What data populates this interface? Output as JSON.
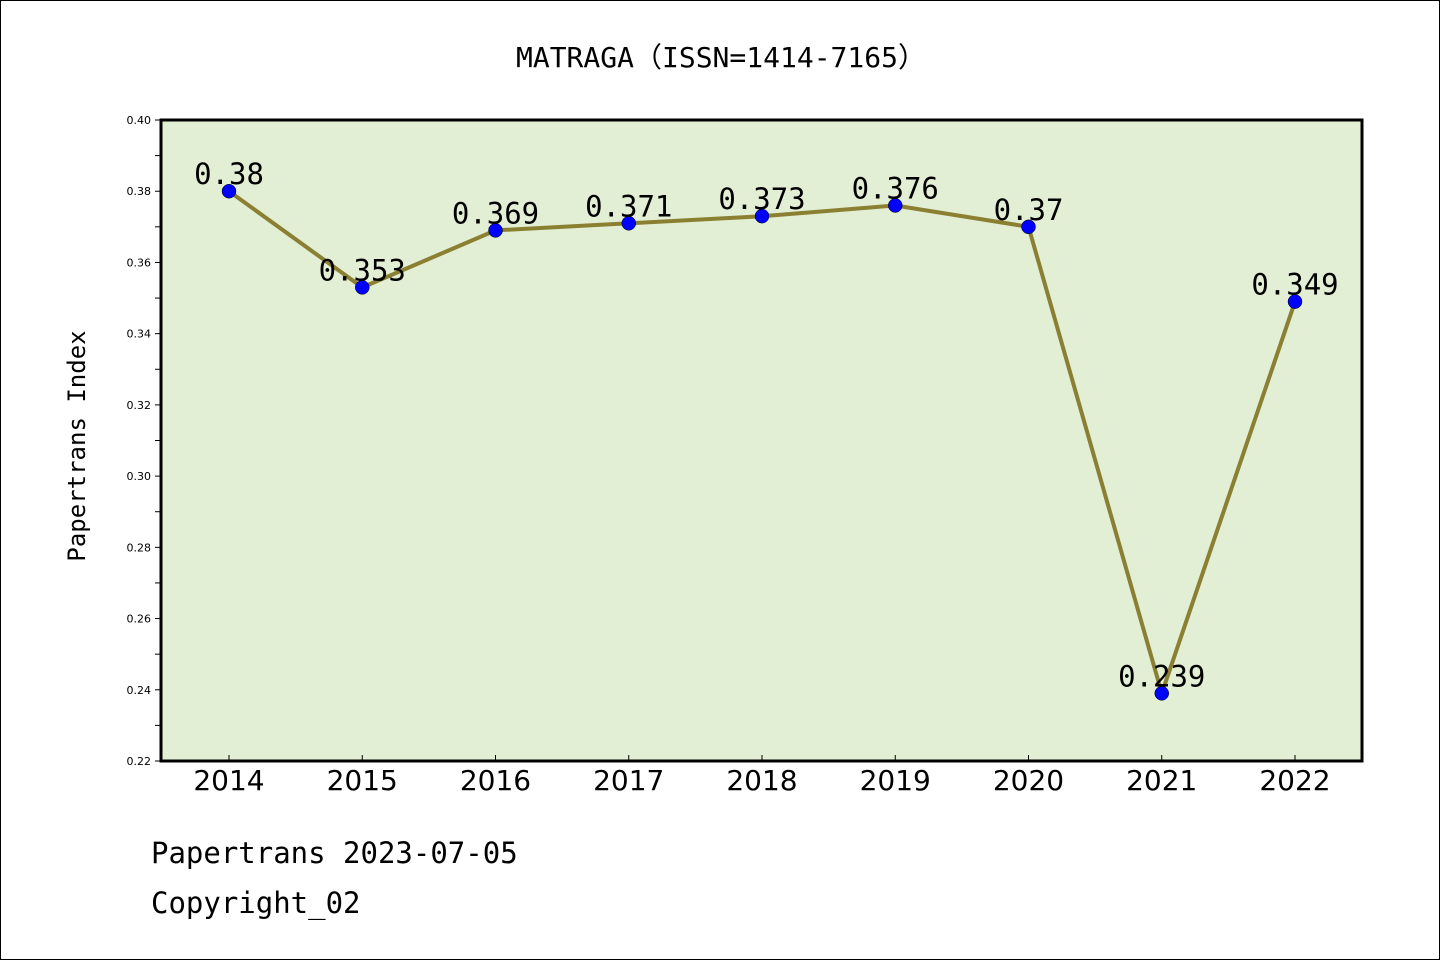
{
  "chart_data": {
    "type": "line",
    "title": "MATRAGA（ISSN=1414-7165）",
    "xlabel": "",
    "ylabel": "Papertrans Index",
    "categories": [
      "2014",
      "2015",
      "2016",
      "2017",
      "2018",
      "2019",
      "2020",
      "2021",
      "2022"
    ],
    "series": [
      {
        "values": [
          0.38,
          0.353,
          0.369,
          0.371,
          0.373,
          0.376,
          0.37,
          0.239,
          0.349
        ],
        "labels": [
          "0.38",
          "0.353",
          "0.369",
          "0.371",
          "0.373",
          "0.376",
          "0.37",
          "0.239",
          "0.349"
        ]
      }
    ],
    "ylim": [
      0.22,
      0.4
    ],
    "yticks": [
      "0.22",
      "0.24",
      "0.26",
      "0.28",
      "0.30",
      "0.32",
      "0.34",
      "0.36",
      "0.38",
      "0.40"
    ],
    "grid": false,
    "legend": "none",
    "colors": {
      "plot_background": "#e2efd5",
      "line": "#8b7f32",
      "marker": "#0000ff"
    }
  },
  "footer": {
    "line1": "Papertrans 2023-07-05",
    "line2": "Copyright_02"
  }
}
